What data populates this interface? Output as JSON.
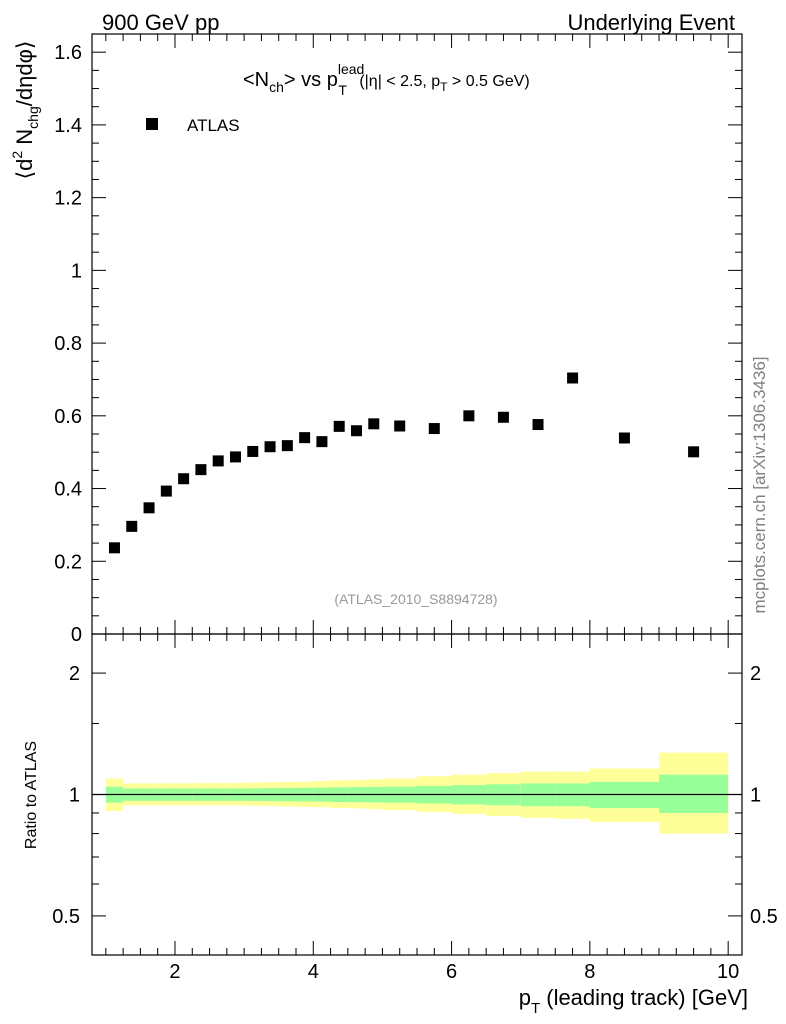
{
  "header": {
    "left": "900 GeV pp",
    "right": "Underlying Event"
  },
  "title": {
    "nch": "<N",
    "nch_sub": "ch",
    "vs": "> vs p",
    "pt_sup": "lead",
    "pt_sub": "T",
    "cut_a": " (|η| < 2.5, p",
    "cut_sub": "T",
    "cut_b": " > 0.5 GeV)"
  },
  "side_label": "mcplots.cern.ch [arXiv:1306.3436]",
  "analysis_label": "(ATLAS_2010_S8894728)",
  "colors": {
    "marker": "#000000",
    "band_inner": "#99ff99",
    "band_outer": "#ffff99",
    "analysis_text": "#999999",
    "side_text": "#808080"
  },
  "chart_data": [
    {
      "type": "scatter",
      "name": "main",
      "ylabel_parts": {
        "a": "⟨d",
        "sup2": "2",
        "b": " N",
        "sub": "chg",
        "c": "/dηdφ⟩"
      },
      "xlim": [
        0.8,
        10.2
      ],
      "ylim": [
        0,
        1.65
      ],
      "yticks": [
        {
          "value": 0,
          "label": "0"
        },
        {
          "value": 0.2,
          "label": "0.2"
        },
        {
          "value": 0.4,
          "label": "0.4"
        },
        {
          "value": 0.6,
          "label": "0.6"
        },
        {
          "value": 0.8,
          "label": "0.8"
        },
        {
          "value": 1.0,
          "label": "1"
        },
        {
          "value": 1.2,
          "label": "1.2"
        },
        {
          "value": 1.4,
          "label": "1.4"
        },
        {
          "value": 1.6,
          "label": "1.6"
        }
      ],
      "legend": [
        {
          "name": "ATLAS",
          "marker": "square"
        }
      ],
      "series": [
        {
          "name": "ATLAS",
          "x": [
            1.125,
            1.375,
            1.625,
            1.875,
            2.125,
            2.375,
            2.625,
            2.875,
            3.125,
            3.375,
            3.625,
            3.875,
            4.125,
            4.375,
            4.625,
            4.875,
            5.25,
            5.75,
            6.25,
            6.75,
            7.25,
            7.75,
            8.5,
            9.5
          ],
          "y": [
            0.237,
            0.296,
            0.347,
            0.393,
            0.427,
            0.452,
            0.476,
            0.487,
            0.502,
            0.515,
            0.518,
            0.54,
            0.529,
            0.571,
            0.559,
            0.578,
            0.572,
            0.565,
            0.6,
            0.596,
            0.576,
            0.704,
            0.539,
            0.501
          ]
        }
      ]
    },
    {
      "type": "band",
      "name": "ratio",
      "ylabel": "Ratio to ATLAS",
      "xlabel_pre": "p",
      "xlabel_sub": "T",
      "xlabel_post": " (leading track) [GeV]",
      "xlim": [
        0.8,
        10.2
      ],
      "ylim": [
        0.4,
        2.5
      ],
      "log_y": true,
      "xticks": [
        {
          "value": 2,
          "label": "2"
        },
        {
          "value": 4,
          "label": "4"
        },
        {
          "value": 6,
          "label": "6"
        },
        {
          "value": 8,
          "label": "8"
        },
        {
          "value": 10,
          "label": "10"
        }
      ],
      "yticks_labeled": [
        {
          "value": 0.5,
          "label": "0.5"
        },
        {
          "value": 1,
          "label": "1"
        },
        {
          "value": 2,
          "label": "2"
        }
      ],
      "reference_line": 1.0,
      "bins": [
        {
          "x0": 1.0,
          "x1": 1.25,
          "inner": [
            0.955,
            1.045
          ],
          "outer": [
            0.91,
            1.095
          ]
        },
        {
          "x0": 1.25,
          "x1": 1.5,
          "inner": [
            0.965,
            1.035
          ],
          "outer": [
            0.94,
            1.065
          ]
        },
        {
          "x0": 1.5,
          "x1": 1.75,
          "inner": [
            0.965,
            1.035
          ],
          "outer": [
            0.94,
            1.065
          ]
        },
        {
          "x0": 1.75,
          "x1": 2.0,
          "inner": [
            0.965,
            1.035
          ],
          "outer": [
            0.94,
            1.066
          ]
        },
        {
          "x0": 2.0,
          "x1": 2.25,
          "inner": [
            0.965,
            1.035
          ],
          "outer": [
            0.94,
            1.066
          ]
        },
        {
          "x0": 2.25,
          "x1": 2.5,
          "inner": [
            0.965,
            1.035
          ],
          "outer": [
            0.94,
            1.067
          ]
        },
        {
          "x0": 2.5,
          "x1": 2.75,
          "inner": [
            0.965,
            1.035
          ],
          "outer": [
            0.94,
            1.067
          ]
        },
        {
          "x0": 2.75,
          "x1": 3.0,
          "inner": [
            0.965,
            1.035
          ],
          "outer": [
            0.94,
            1.068
          ]
        },
        {
          "x0": 3.0,
          "x1": 3.25,
          "inner": [
            0.964,
            1.036
          ],
          "outer": [
            0.938,
            1.07
          ]
        },
        {
          "x0": 3.25,
          "x1": 3.5,
          "inner": [
            0.963,
            1.037
          ],
          "outer": [
            0.936,
            1.072
          ]
        },
        {
          "x0": 3.5,
          "x1": 3.75,
          "inner": [
            0.962,
            1.038
          ],
          "outer": [
            0.934,
            1.074
          ]
        },
        {
          "x0": 3.75,
          "x1": 4.0,
          "inner": [
            0.961,
            1.039
          ],
          "outer": [
            0.932,
            1.076
          ]
        },
        {
          "x0": 4.0,
          "x1": 4.25,
          "inner": [
            0.96,
            1.04
          ],
          "outer": [
            0.93,
            1.08
          ]
        },
        {
          "x0": 4.25,
          "x1": 4.5,
          "inner": [
            0.958,
            1.042
          ],
          "outer": [
            0.926,
            1.084
          ]
        },
        {
          "x0": 4.5,
          "x1": 4.75,
          "inner": [
            0.957,
            1.043
          ],
          "outer": [
            0.924,
            1.086
          ]
        },
        {
          "x0": 4.75,
          "x1": 5.0,
          "inner": [
            0.956,
            1.044
          ],
          "outer": [
            0.92,
            1.09
          ]
        },
        {
          "x0": 5.0,
          "x1": 5.5,
          "inner": [
            0.954,
            1.046
          ],
          "outer": [
            0.915,
            1.095
          ]
        },
        {
          "x0": 5.5,
          "x1": 6.0,
          "inner": [
            0.95,
            1.05
          ],
          "outer": [
            0.905,
            1.11
          ]
        },
        {
          "x0": 6.0,
          "x1": 6.5,
          "inner": [
            0.945,
            1.055
          ],
          "outer": [
            0.895,
            1.12
          ]
        },
        {
          "x0": 6.5,
          "x1": 7.0,
          "inner": [
            0.94,
            1.06
          ],
          "outer": [
            0.885,
            1.13
          ]
        },
        {
          "x0": 7.0,
          "x1": 7.5,
          "inner": [
            0.935,
            1.065
          ],
          "outer": [
            0.875,
            1.14
          ]
        },
        {
          "x0": 7.5,
          "x1": 8.0,
          "inner": [
            0.935,
            1.065
          ],
          "outer": [
            0.87,
            1.14
          ]
        },
        {
          "x0": 8.0,
          "x1": 9.0,
          "inner": [
            0.925,
            1.075
          ],
          "outer": [
            0.855,
            1.16
          ]
        },
        {
          "x0": 9.0,
          "x1": 10.0,
          "inner": [
            0.9,
            1.12
          ],
          "outer": [
            0.8,
            1.27
          ]
        }
      ]
    }
  ]
}
